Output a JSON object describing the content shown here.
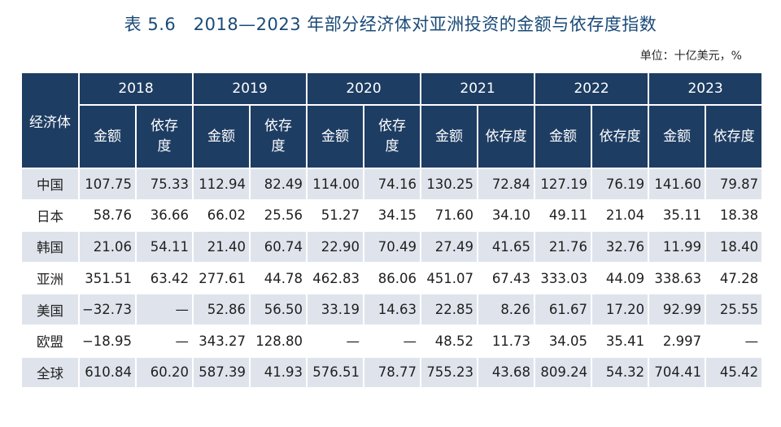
{
  "title": "表 5.6　2018—2023 年部分经济体对亚洲投资的金额与依存度指数",
  "unit": "单位：十亿美元，%",
  "table": {
    "row_header": "经济体",
    "years": [
      "2018",
      "2019",
      "2020",
      "2021",
      "2022",
      "2023"
    ],
    "sub_headers": [
      "金额",
      "依存\n度",
      "金额",
      "依存\n度",
      "金额",
      "依存\n度",
      "金额",
      "依存度",
      "金额",
      "依存度",
      "金额",
      "依存度"
    ],
    "rows": [
      {
        "entity": "中国",
        "values": [
          "107.75",
          "75.33",
          "112.94",
          "82.49",
          "114.00",
          "74.16",
          "130.25",
          "72.84",
          "127.19",
          "76.19",
          "141.60",
          "79.87"
        ]
      },
      {
        "entity": "日本",
        "values": [
          "58.76",
          "36.66",
          "66.02",
          "25.56",
          "51.27",
          "34.15",
          "71.60",
          "34.10",
          "49.11",
          "21.04",
          "35.11",
          "18.38"
        ]
      },
      {
        "entity": "韩国",
        "values": [
          "21.06",
          "54.11",
          "21.40",
          "60.74",
          "22.90",
          "70.49",
          "27.49",
          "41.65",
          "21.76",
          "32.76",
          "11.99",
          "18.40"
        ]
      },
      {
        "entity": "亚洲",
        "values": [
          "351.51",
          "63.42",
          "277.61",
          "44.78",
          "462.83",
          "86.06",
          "451.07",
          "67.43",
          "333.03",
          "44.09",
          "338.63",
          "47.28"
        ]
      },
      {
        "entity": "美国",
        "values": [
          "−32.73",
          "—",
          "52.86",
          "56.50",
          "33.19",
          "14.63",
          "22.85",
          "8.26",
          "61.67",
          "17.20",
          "92.99",
          "25.55"
        ]
      },
      {
        "entity": "欧盟",
        "values": [
          "−18.95",
          "—",
          "343.27",
          "128.80",
          "—",
          "—",
          "48.52",
          "11.73",
          "34.05",
          "35.41",
          "2.997",
          "—"
        ]
      },
      {
        "entity": "全球",
        "values": [
          "610.84",
          "60.20",
          "587.39",
          "41.93",
          "576.51",
          "78.77",
          "755.23",
          "43.68",
          "809.24",
          "54.32",
          "704.41",
          "45.42"
        ]
      }
    ]
  }
}
